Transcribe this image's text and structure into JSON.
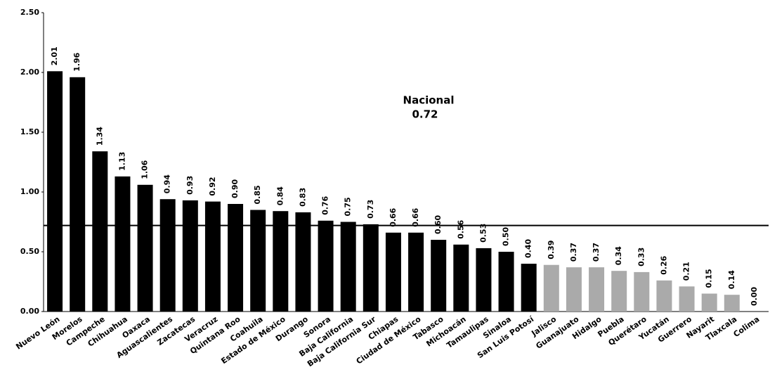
{
  "chart_data": {
    "type": "bar",
    "categories": [
      "Nuevo León",
      "Morelos",
      "Campeche",
      "Chihuahua",
      "Oaxaca",
      "Aguascalientes",
      "Zacatecas",
      "Veracruz",
      "Quintana Roo",
      "Coahuila",
      "Estado de México",
      "Durango",
      "Sonora",
      "Baja California",
      "Baja California Sur",
      "Chiapas",
      "Ciudad de México",
      "Tabasco",
      "Michoacán",
      "Tamaulipas",
      "Sinaloa",
      "San Luis Potosí",
      "Jalisco",
      "Guanajuato",
      "Hidalgo",
      "Puebla",
      "Querétaro",
      "Yucatán",
      "Guerrero",
      "Nayarit",
      "Tlaxcala",
      "Colima"
    ],
    "values": [
      2.01,
      1.96,
      1.34,
      1.13,
      1.06,
      0.94,
      0.93,
      0.92,
      0.9,
      0.85,
      0.84,
      0.83,
      0.76,
      0.75,
      0.73,
      0.66,
      0.66,
      0.6,
      0.56,
      0.53,
      0.5,
      0.4,
      0.39,
      0.37,
      0.37,
      0.34,
      0.33,
      0.26,
      0.21,
      0.15,
      0.14,
      0.0
    ],
    "value_labels": [
      "2.01",
      "1.96",
      "1.34",
      "1.13",
      "1.06",
      "0.94",
      "0.93",
      "0.92",
      "0.90",
      "0.85",
      "0.84",
      "0.83",
      "0.76",
      "0.75",
      "0.73",
      "0.66",
      "0.66",
      "0.60",
      "0.56",
      "0.53",
      "0.50",
      "0.40",
      "0.39",
      "0.37",
      "0.37",
      "0.34",
      "0.33",
      "0.26",
      "0.21",
      "0.15",
      "0.14",
      "0.00"
    ],
    "colors": [
      "#000",
      "#000",
      "#000",
      "#000",
      "#000",
      "#000",
      "#000",
      "#000",
      "#000",
      "#000",
      "#000",
      "#000",
      "#000",
      "#000",
      "#000",
      "#000",
      "#000",
      "#000",
      "#000",
      "#000",
      "#000",
      "#000",
      "#aaa",
      "#aaa",
      "#aaa",
      "#aaa",
      "#aaa",
      "#aaa",
      "#aaa",
      "#aaa",
      "#aaa",
      "#aaa"
    ],
    "ylim": [
      0,
      2.5
    ],
    "yticks": [
      {
        "value": 0,
        "label": "0.00"
      },
      {
        "value": 0.5,
        "label": "0.50"
      },
      {
        "value": 1,
        "label": "1.00"
      },
      {
        "value": 1.5,
        "label": "1.50"
      },
      {
        "value": 2,
        "label": "2.00"
      },
      {
        "value": 2.5,
        "label": "2.50"
      }
    ],
    "reference_line": {
      "label": "Nacional",
      "value": 0.72,
      "value_label": "0.72"
    }
  }
}
